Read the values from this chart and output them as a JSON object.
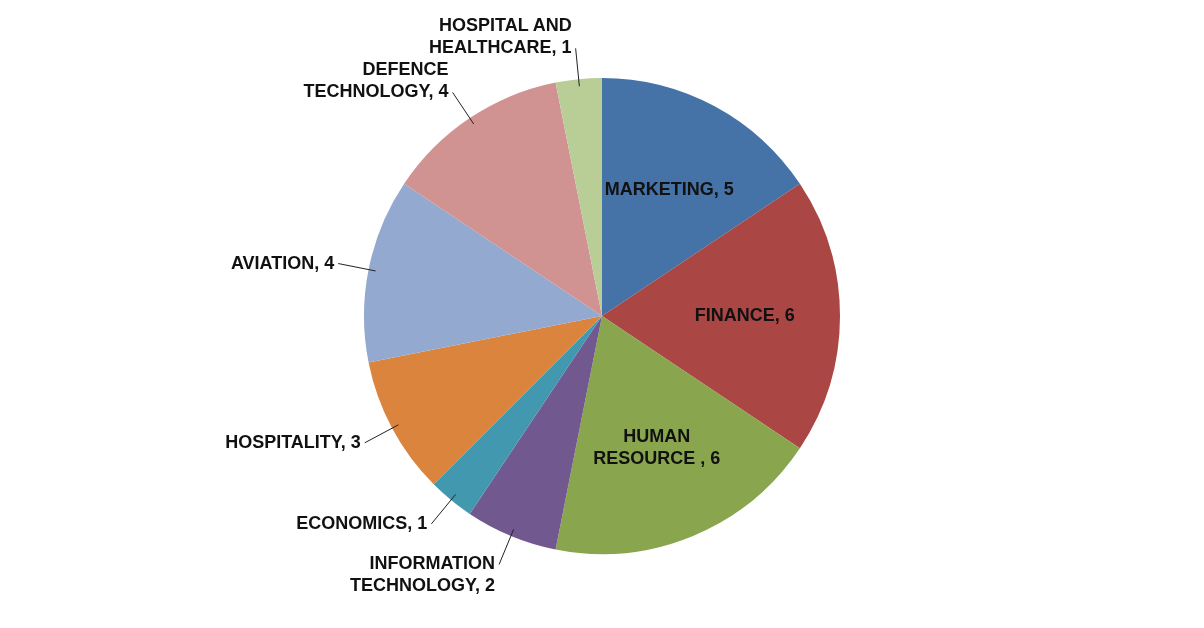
{
  "chart_data": {
    "type": "pie",
    "categories": [
      "MARKETING, 5",
      "FINANCE, 6",
      "HUMAN RESOURCE , 6",
      "INFORMATION TECHNOLOGY, 2",
      "ECONOMICS, 1",
      "HOSPITALITY, 3",
      "AVIATION, 4",
      "DEFENCE TECHNOLOGY, 4",
      "HOSPITAL AND HEALTHCARE, 1"
    ],
    "values": [
      5,
      6,
      6,
      2,
      1,
      3,
      4,
      4,
      1
    ],
    "colors": [
      "#4572a7",
      "#aa4643",
      "#89a54e",
      "#71588f",
      "#4198af",
      "#db843d",
      "#93a9cf",
      "#d19392",
      "#b9cd96"
    ],
    "legend": false
  }
}
